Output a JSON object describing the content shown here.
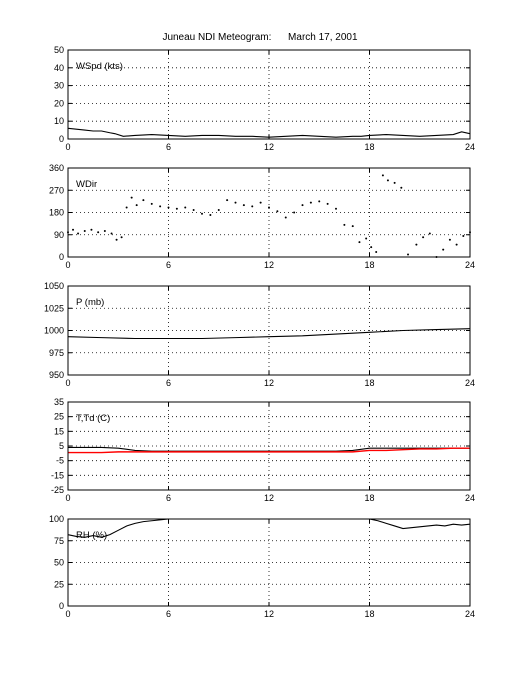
{
  "title": "Juneau NDI Meteogram:      March 17, 2001",
  "chart_data": [
    {
      "type": "line",
      "label": "WSpd (kts)",
      "xlim": [
        0,
        24
      ],
      "xticks": [
        0,
        6,
        12,
        18,
        24
      ],
      "ylim": [
        0,
        50
      ],
      "yticks": [
        0,
        10,
        20,
        30,
        40,
        50
      ],
      "grid": true,
      "series": [
        {
          "color": "#000000",
          "x": [
            0,
            0.5,
            1,
            1.5,
            2,
            2.5,
            2.8,
            3.3,
            4,
            5,
            6,
            7,
            8,
            9,
            10,
            11,
            12,
            13,
            14,
            15,
            16,
            17,
            17.5,
            18,
            19,
            20,
            21,
            22,
            23,
            23.5,
            24
          ],
          "y": [
            6,
            5.5,
            5,
            4.5,
            4.5,
            3.5,
            3,
            1.5,
            2,
            2.5,
            2,
            1.5,
            2,
            2,
            1.5,
            1.5,
            1,
            1.5,
            2,
            1.5,
            1,
            1.5,
            1.5,
            2,
            2.5,
            2,
            1.5,
            2,
            2.5,
            4,
            3
          ]
        }
      ]
    },
    {
      "type": "scatter",
      "label": "WDir",
      "xlim": [
        0,
        24
      ],
      "xticks": [
        0,
        6,
        12,
        18,
        24
      ],
      "ylim": [
        0,
        360
      ],
      "yticks": [
        0,
        90,
        180,
        270,
        360
      ],
      "grid": true,
      "series": [
        {
          "color": "#000000",
          "x": [
            0,
            0.3,
            0.6,
            1,
            1.4,
            1.8,
            2.2,
            2.6,
            2.9,
            3.2,
            3.5,
            3.8,
            4.1,
            4.5,
            5,
            5.5,
            6,
            6.5,
            7,
            7.5,
            8,
            8.5,
            9,
            9.5,
            10,
            10.5,
            11,
            11.5,
            12,
            12.5,
            13,
            13.5,
            14,
            14.5,
            15,
            15.5,
            16,
            16.5,
            17,
            17.4,
            17.8,
            18.1,
            18.4,
            18.8,
            19.1,
            19.5,
            19.9,
            20.3,
            20.8,
            21.2,
            21.6,
            22,
            22.4,
            22.8,
            23.2,
            23.6,
            24
          ],
          "y": [
            100,
            110,
            95,
            105,
            110,
            100,
            105,
            95,
            70,
            80,
            200,
            240,
            210,
            230,
            215,
            205,
            200,
            195,
            200,
            190,
            175,
            170,
            190,
            230,
            220,
            210,
            205,
            220,
            200,
            185,
            160,
            180,
            210,
            220,
            225,
            215,
            195,
            130,
            125,
            60,
            75,
            40,
            20,
            330,
            310,
            300,
            280,
            10,
            50,
            80,
            95,
            0,
            30,
            70,
            50,
            85,
            100
          ]
        }
      ]
    },
    {
      "type": "line",
      "label": "P (mb)",
      "xlim": [
        0,
        24
      ],
      "xticks": [
        0,
        6,
        12,
        18,
        24
      ],
      "ylim": [
        950,
        1050
      ],
      "yticks": [
        950,
        975,
        1000,
        1025,
        1050
      ],
      "grid": true,
      "series": [
        {
          "color": "#000000",
          "x": [
            0,
            2,
            4,
            6,
            8,
            10,
            12,
            14,
            16,
            18,
            20,
            22,
            24
          ],
          "y": [
            993,
            992,
            991,
            991,
            991,
            992,
            993,
            994,
            996,
            998,
            1000,
            1001,
            1002
          ]
        }
      ]
    },
    {
      "type": "line",
      "label": "T,Td (C)",
      "xlim": [
        0,
        24
      ],
      "xticks": [
        0,
        6,
        12,
        18,
        24
      ],
      "ylim": [
        -25,
        35
      ],
      "yticks": [
        -25,
        -15,
        -5,
        5,
        15,
        25,
        35
      ],
      "grid": true,
      "series": [
        {
          "color": "#000000",
          "x": [
            0,
            1,
            2,
            3,
            4,
            5,
            6,
            8,
            10,
            12,
            14,
            16,
            17,
            18,
            19,
            20,
            21,
            22,
            23,
            24
          ],
          "y": [
            4,
            4,
            4,
            3.5,
            2,
            1.5,
            1.5,
            1.5,
            1.5,
            1.5,
            1.5,
            1.5,
            2,
            3.5,
            3.5,
            3.5,
            3.5,
            3.5,
            3.5,
            3.5
          ]
        },
        {
          "color": "#ff0000",
          "x": [
            0,
            1,
            2,
            3,
            4,
            5,
            6,
            8,
            10,
            12,
            14,
            16,
            17,
            18,
            19,
            20,
            21,
            22,
            23,
            24
          ],
          "y": [
            0.5,
            0.5,
            0.5,
            1,
            1,
            1,
            1,
            1,
            1,
            1,
            1,
            1,
            1,
            2,
            2,
            2.5,
            3,
            3,
            3.5,
            3.5
          ]
        }
      ]
    },
    {
      "type": "line",
      "label": "RH (%)",
      "xlim": [
        0,
        24
      ],
      "xticks": [
        0,
        6,
        12,
        18,
        24
      ],
      "ylim": [
        0,
        100
      ],
      "yticks": [
        0,
        25,
        50,
        75,
        100
      ],
      "grid": true,
      "series": [
        {
          "color": "#000000",
          "x": [
            0,
            0.5,
            1,
            1.5,
            2,
            2.5,
            3,
            3.5,
            4,
            4.5,
            5,
            5.5,
            6
          ],
          "y": [
            82,
            80,
            79,
            81,
            79,
            82,
            87,
            92,
            95,
            97,
            98,
            99,
            100
          ]
        },
        {
          "color": "#000000",
          "x": [
            18,
            18.5,
            19,
            19.5,
            20,
            20.5,
            21,
            21.5,
            22,
            22.5,
            23,
            23.5,
            24
          ],
          "y": [
            100,
            98,
            95,
            92,
            89,
            90,
            91,
            92,
            93,
            92,
            94,
            93,
            94
          ]
        }
      ]
    }
  ]
}
